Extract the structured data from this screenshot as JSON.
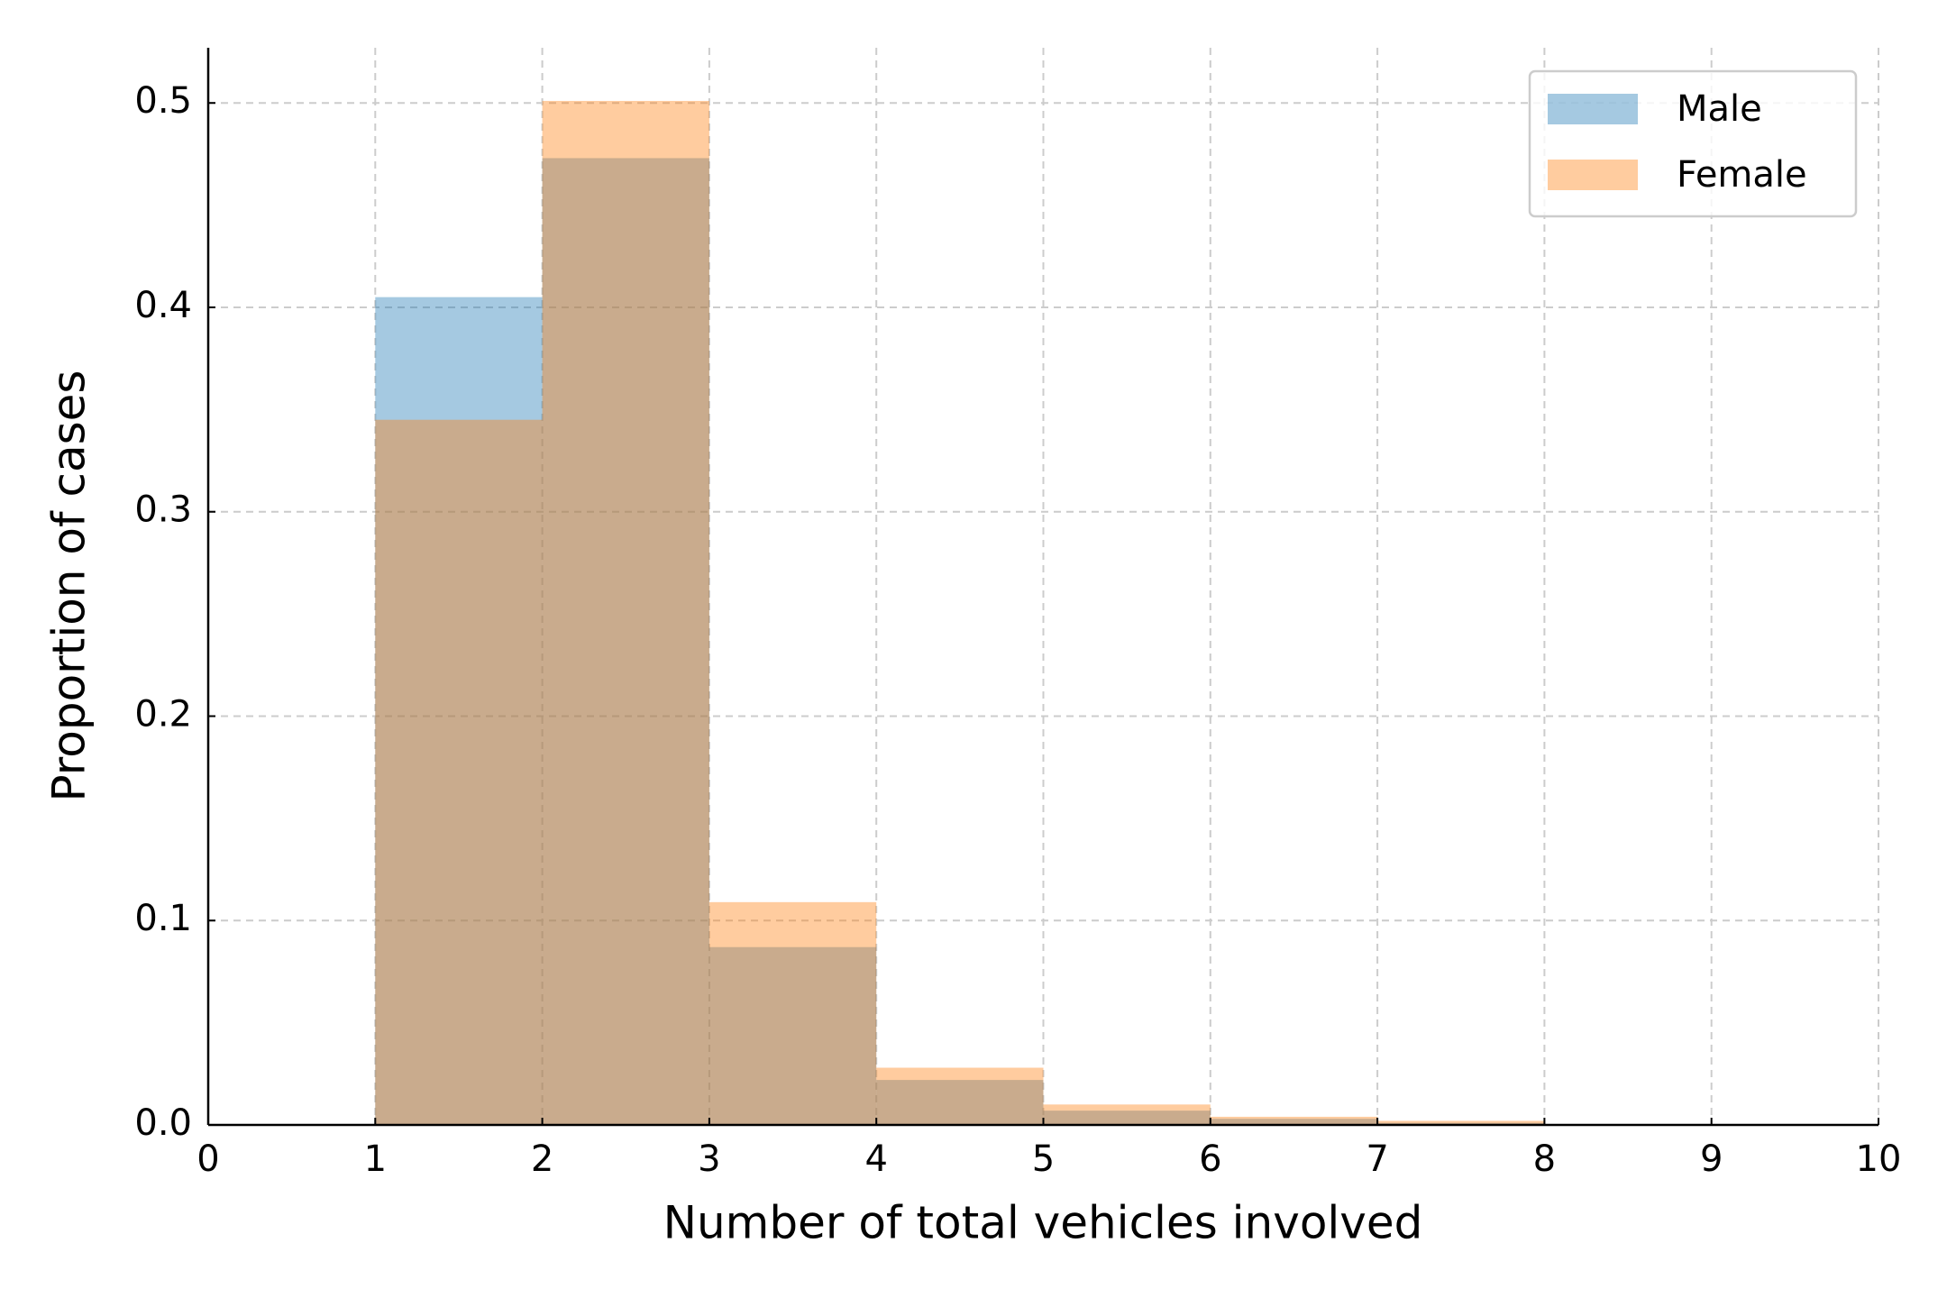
{
  "chart_data": {
    "type": "histogram",
    "xlabel": "Number of total vehicles involved",
    "ylabel": "Proportion of cases",
    "bins": [
      1,
      2,
      3,
      4,
      5,
      6,
      7,
      8
    ],
    "series": [
      {
        "name": "Male",
        "color": "#1f77b4",
        "values": [
          0.405,
          0.473,
          0.087,
          0.022,
          0.007,
          0.003,
          0.001
        ]
      },
      {
        "name": "Female",
        "color": "#ff7f0e",
        "values": [
          0.345,
          0.501,
          0.109,
          0.028,
          0.01,
          0.004,
          0.002
        ]
      }
    ],
    "opacity": 0.4,
    "xlim": [
      0,
      10
    ],
    "xticks": [
      0,
      1,
      2,
      3,
      4,
      5,
      6,
      7,
      8,
      9,
      10
    ],
    "ylim": [
      0,
      0.527
    ],
    "yticks": [
      {
        "value": 0,
        "label": "0.0"
      },
      0.1,
      0.2,
      0.3,
      0.4,
      0.5
    ],
    "grid": true,
    "legend": "upper right"
  }
}
